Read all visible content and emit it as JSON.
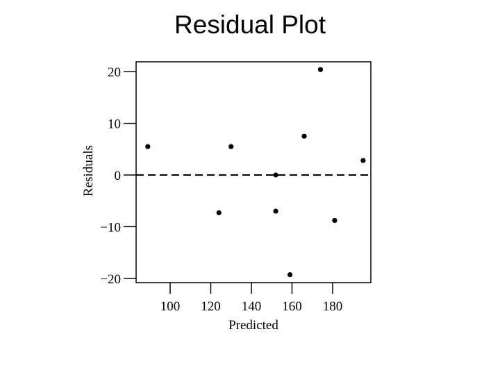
{
  "chart_data": {
    "type": "scatter",
    "title": "Residual Plot",
    "xlabel": "Predicted",
    "ylabel": "Residuals",
    "xlim": [
      86,
      198
    ],
    "ylim": [
      -21.5,
      21.5
    ],
    "x_ticks": [
      100,
      120,
      140,
      160,
      180
    ],
    "y_ticks": [
      20,
      10,
      0,
      -10,
      -20
    ],
    "y_tick_labels": [
      "20",
      "10",
      "0",
      "−10",
      "−20"
    ],
    "reference_line": {
      "y": 0,
      "style": "dashed"
    },
    "grid": false,
    "points": [
      {
        "x": 89,
        "y": 5.5
      },
      {
        "x": 124,
        "y": -7.3
      },
      {
        "x": 130,
        "y": 5.5
      },
      {
        "x": 152,
        "y": -7.0
      },
      {
        "x": 152,
        "y": 0
      },
      {
        "x": 159,
        "y": -19.3
      },
      {
        "x": 166,
        "y": 7.5
      },
      {
        "x": 174,
        "y": 20.4
      },
      {
        "x": 181,
        "y": -8.8
      },
      {
        "x": 195,
        "y": 2.8
      }
    ]
  }
}
